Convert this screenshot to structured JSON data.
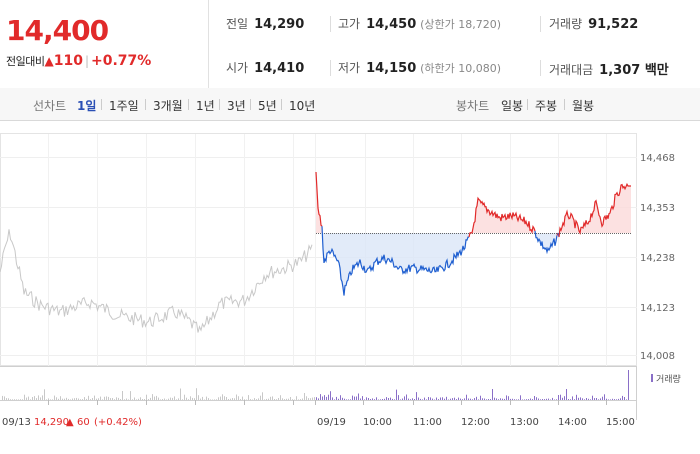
{
  "quote": {
    "price": "14,400",
    "change_label": "전일대비",
    "change_arrow": "▲",
    "change_value": "110",
    "change_pct": "+0.77%",
    "prev_close": {
      "label": "전일",
      "value": "14,290"
    },
    "high": {
      "label": "고가",
      "value": "14,450",
      "sub": "(상한가 18,720)"
    },
    "volume": {
      "label": "거래량",
      "value": "91,522"
    },
    "open": {
      "label": "시가",
      "value": "14,410"
    },
    "low": {
      "label": "저가",
      "value": "14,150",
      "sub": "(하한가 10,080)"
    },
    "amount": {
      "label": "거래대금",
      "value": "1,307 백만"
    }
  },
  "toolbar": {
    "line_label": "선차트",
    "line_periods": [
      "1일",
      "1주일",
      "3개월",
      "1년",
      "3년",
      "5년",
      "10년"
    ],
    "active_period": "1일",
    "candle_label": "봉차트",
    "candle_periods": [
      "일봉",
      "주봉",
      "월봉"
    ]
  },
  "chart": {
    "y_ticks": [
      "14,468",
      "14,353",
      "14,238",
      "14,123",
      "14,008"
    ],
    "x_labels": [
      "09/19",
      "10:00",
      "11:00",
      "12:00",
      "13:00",
      "14:00",
      "15:00"
    ],
    "left_date": "09/13",
    "volume_legend": "거래량",
    "prev_info": {
      "price": "14,290",
      "arrow": "▲",
      "change": "60",
      "pct": "(+0.42%)"
    },
    "colors": {
      "up": "#e12a2a",
      "down": "#1f5fd0",
      "prev": "#c8c8c8"
    }
  }
}
